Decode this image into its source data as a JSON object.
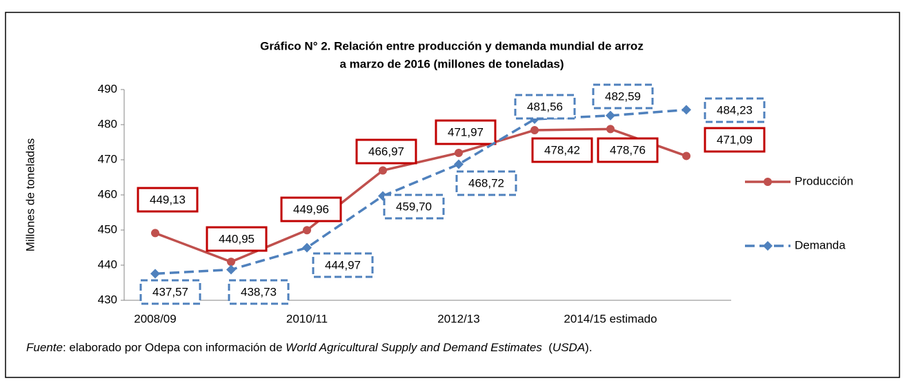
{
  "chart_data": {
    "type": "line",
    "title": [
      "Gráfico N° 2. Relación entre producción y demanda mundial de arroz",
      "a marzo de 2016 (millones de toneladas)"
    ],
    "y_label": "Millones de toneladas",
    "categories": [
      "2008/09",
      null,
      "2010/11",
      null,
      "2012/13",
      null,
      "2014/15 estimado",
      null
    ],
    "ylim": [
      430,
      490
    ],
    "yticks": [
      430,
      440,
      450,
      460,
      470,
      480,
      490
    ],
    "series": [
      {
        "name": "Producción",
        "color": "#c0504d",
        "style": "solid",
        "marker": "circle",
        "values": [
          449.13,
          440.95,
          449.96,
          466.97,
          471.97,
          478.42,
          478.76,
          471.09
        ],
        "value_labels": [
          "449,13",
          "440,95",
          "449,96",
          "466,97",
          "471,97",
          "478,42",
          "478,76",
          "471,09"
        ]
      },
      {
        "name": "Demanda",
        "color": "#4f81bd",
        "style": "dashed",
        "marker": "diamond",
        "values": [
          437.57,
          438.73,
          444.97,
          459.7,
          468.72,
          481.56,
          482.59,
          484.23
        ],
        "value_labels": [
          "437,57",
          "438,73",
          "444,97",
          "459,70",
          "468,72",
          "481,56",
          "482,59",
          "484,23"
        ]
      }
    ]
  },
  "source": [
    "Fuente",
    ": elaborado por Odepa con información de ",
    "World Agricultural Supply and Demand Estimates",
    "  (",
    "USDA",
    ")."
  ]
}
